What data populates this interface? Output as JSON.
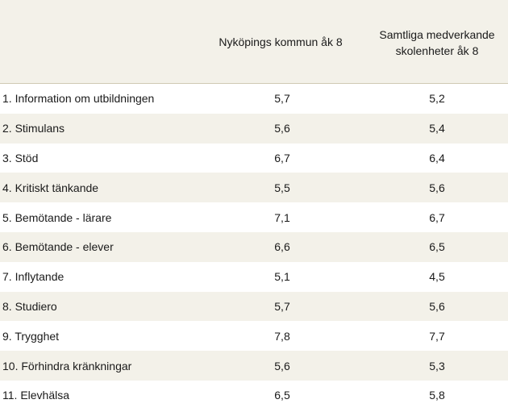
{
  "header": {
    "col1": "Nyköpings kommun åk 8",
    "col2": "Samtliga medverkande\nskolenheter åk 8"
  },
  "rows": [
    {
      "label": "1. Information om utbildningen",
      "v1": "5,7",
      "v2": "5,2"
    },
    {
      "label": "2. Stimulans",
      "v1": "5,6",
      "v2": "5,4"
    },
    {
      "label": "3. Stöd",
      "v1": "6,7",
      "v2": "6,4"
    },
    {
      "label": "4. Kritiskt tänkande",
      "v1": "5,5",
      "v2": "5,6"
    },
    {
      "label": "5. Bemötande - lärare",
      "v1": "7,1",
      "v2": "6,7"
    },
    {
      "label": "6. Bemötande - elever",
      "v1": "6,6",
      "v2": "6,5"
    },
    {
      "label": "7. Inflytande",
      "v1": "5,1",
      "v2": "4,5"
    },
    {
      "label": "8. Studiero",
      "v1": "5,7",
      "v2": "5,6"
    },
    {
      "label": "9. Trygghet",
      "v1": "7,8",
      "v2": "7,7"
    },
    {
      "label": "10. Förhindra kränkningar",
      "v1": "5,6",
      "v2": "5,3"
    },
    {
      "label": "11. Elevhälsa",
      "v1": "6,5",
      "v2": "5,8"
    }
  ],
  "colors": {
    "shade": "#f3f1e9",
    "text": "#1a1a1a"
  }
}
